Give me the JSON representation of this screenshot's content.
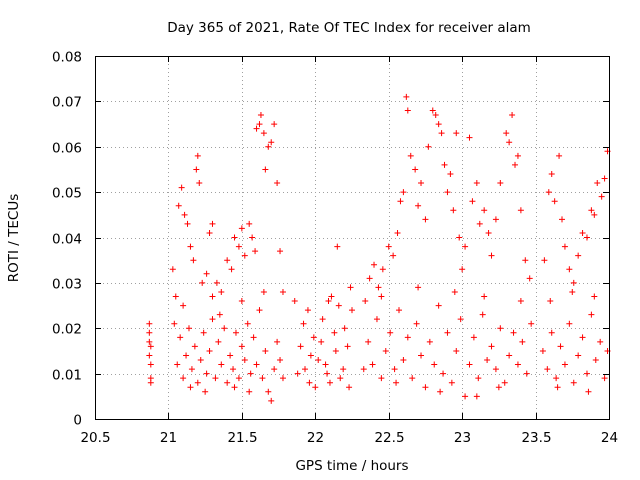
{
  "chart_data": {
    "type": "scatter",
    "title": "Day 365 of 2021, Rate Of TEC Index for receiver alam",
    "xlabel": "GPS time / hours",
    "ylabel": "ROTI / TECUs",
    "xlim": [
      20.5,
      24
    ],
    "ylim": [
      0,
      0.08
    ],
    "grid": true,
    "marker": "+",
    "color": "#ff0000",
    "x_ticks": [
      20.5,
      21,
      21.5,
      22,
      22.5,
      23,
      23.5,
      24
    ],
    "x_tick_labels": [
      "20.5",
      "21",
      "21.5",
      "22",
      "22.5",
      "23",
      "23.5",
      "24"
    ],
    "y_ticks": [
      0,
      0.01,
      0.02,
      0.03,
      0.04,
      0.05,
      0.06,
      0.07,
      0.08
    ],
    "y_tick_labels": [
      "0",
      "0.01",
      "0.02",
      "0.03",
      "0.04",
      "0.05",
      "0.06",
      "0.07",
      "0.08"
    ],
    "series": [
      {
        "name": "ROTI",
        "points": [
          [
            20.87,
            0.021
          ],
          [
            20.87,
            0.019
          ],
          [
            20.87,
            0.017
          ],
          [
            20.87,
            0.014
          ],
          [
            20.88,
            0.012
          ],
          [
            20.88,
            0.009
          ],
          [
            20.88,
            0.008
          ],
          [
            20.88,
            0.016
          ],
          [
            21.03,
            0.033
          ],
          [
            21.05,
            0.027
          ],
          [
            21.07,
            0.047
          ],
          [
            21.09,
            0.051
          ],
          [
            21.11,
            0.045
          ],
          [
            21.13,
            0.043
          ],
          [
            21.15,
            0.038
          ],
          [
            21.17,
            0.035
          ],
          [
            21.19,
            0.055
          ],
          [
            21.2,
            0.058
          ],
          [
            21.21,
            0.052
          ],
          [
            21.23,
            0.03
          ],
          [
            21.26,
            0.032
          ],
          [
            21.28,
            0.041
          ],
          [
            21.3,
            0.043
          ],
          [
            21.33,
            0.03
          ],
          [
            21.36,
            0.028
          ],
          [
            21.4,
            0.035
          ],
          [
            21.43,
            0.033
          ],
          [
            21.45,
            0.04
          ],
          [
            21.48,
            0.038
          ],
          [
            21.5,
            0.042
          ],
          [
            21.52,
            0.036
          ],
          [
            21.55,
            0.043
          ],
          [
            21.57,
            0.04
          ],
          [
            21.59,
            0.037
          ],
          [
            21.6,
            0.064
          ],
          [
            21.62,
            0.065
          ],
          [
            21.63,
            0.067
          ],
          [
            21.65,
            0.063
          ],
          [
            21.66,
            0.055
          ],
          [
            21.68,
            0.06
          ],
          [
            21.7,
            0.061
          ],
          [
            21.72,
            0.065
          ],
          [
            21.74,
            0.052
          ],
          [
            21.76,
            0.037
          ],
          [
            21.78,
            0.028
          ],
          [
            21.04,
            0.021
          ],
          [
            21.06,
            0.012
          ],
          [
            21.08,
            0.018
          ],
          [
            21.1,
            0.009
          ],
          [
            21.12,
            0.014
          ],
          [
            21.14,
            0.02
          ],
          [
            21.16,
            0.011
          ],
          [
            21.18,
            0.016
          ],
          [
            21.2,
            0.008
          ],
          [
            21.22,
            0.013
          ],
          [
            21.24,
            0.019
          ],
          [
            21.26,
            0.01
          ],
          [
            21.28,
            0.015
          ],
          [
            21.3,
            0.022
          ],
          [
            21.32,
            0.009
          ],
          [
            21.34,
            0.017
          ],
          [
            21.36,
            0.012
          ],
          [
            21.38,
            0.02
          ],
          [
            21.4,
            0.008
          ],
          [
            21.42,
            0.014
          ],
          [
            21.44,
            0.011
          ],
          [
            21.46,
            0.019
          ],
          [
            21.48,
            0.009
          ],
          [
            21.5,
            0.016
          ],
          [
            21.52,
            0.013
          ],
          [
            21.54,
            0.021
          ],
          [
            21.56,
            0.01
          ],
          [
            21.58,
            0.018
          ],
          [
            21.6,
            0.012
          ],
          [
            21.62,
            0.024
          ],
          [
            21.64,
            0.009
          ],
          [
            21.66,
            0.015
          ],
          [
            21.68,
            0.006
          ],
          [
            21.7,
            0.004
          ],
          [
            21.72,
            0.011
          ],
          [
            21.74,
            0.017
          ],
          [
            21.76,
            0.013
          ],
          [
            21.78,
            0.009
          ],
          [
            21.1,
            0.025
          ],
          [
            21.3,
            0.027
          ],
          [
            21.5,
            0.026
          ],
          [
            21.65,
            0.028
          ],
          [
            21.25,
            0.006
          ],
          [
            21.45,
            0.007
          ],
          [
            21.55,
            0.006
          ],
          [
            21.35,
            0.023
          ],
          [
            21.15,
            0.007
          ],
          [
            21.86,
            0.026
          ],
          [
            21.9,
            0.016
          ],
          [
            21.93,
            0.011
          ],
          [
            21.96,
            0.008
          ],
          [
            21.99,
            0.018
          ],
          [
            22.02,
            0.013
          ],
          [
            22.05,
            0.022
          ],
          [
            22.08,
            0.01
          ],
          [
            22.11,
            0.027
          ],
          [
            22.14,
            0.015
          ],
          [
            22.17,
            0.009
          ],
          [
            22.2,
            0.02
          ],
          [
            22.23,
            0.007
          ],
          [
            22.25,
            0.024
          ],
          [
            21.88,
            0.01
          ],
          [
            21.92,
            0.021
          ],
          [
            21.97,
            0.014
          ],
          [
            22.0,
            0.007
          ],
          [
            22.04,
            0.017
          ],
          [
            22.07,
            0.012
          ],
          [
            22.1,
            0.008
          ],
          [
            22.13,
            0.019
          ],
          [
            22.16,
            0.025
          ],
          [
            22.19,
            0.011
          ],
          [
            22.22,
            0.016
          ],
          [
            22.24,
            0.029
          ],
          [
            22.15,
            0.038
          ],
          [
            21.95,
            0.024
          ],
          [
            22.09,
            0.026
          ],
          [
            22.34,
            0.026
          ],
          [
            22.37,
            0.031
          ],
          [
            22.4,
            0.034
          ],
          [
            22.43,
            0.029
          ],
          [
            22.46,
            0.033
          ],
          [
            22.5,
            0.038
          ],
          [
            22.53,
            0.036
          ],
          [
            22.56,
            0.041
          ],
          [
            22.58,
            0.048
          ],
          [
            22.6,
            0.05
          ],
          [
            22.62,
            0.071
          ],
          [
            22.63,
            0.068
          ],
          [
            22.65,
            0.058
          ],
          [
            22.68,
            0.055
          ],
          [
            22.7,
            0.047
          ],
          [
            22.72,
            0.052
          ],
          [
            22.75,
            0.044
          ],
          [
            22.77,
            0.06
          ],
          [
            22.8,
            0.068
          ],
          [
            22.82,
            0.067
          ],
          [
            22.84,
            0.065
          ],
          [
            22.86,
            0.063
          ],
          [
            22.88,
            0.056
          ],
          [
            22.9,
            0.05
          ],
          [
            22.92,
            0.054
          ],
          [
            22.94,
            0.046
          ],
          [
            22.96,
            0.063
          ],
          [
            22.98,
            0.04
          ],
          [
            23.0,
            0.033
          ],
          [
            23.02,
            0.038
          ],
          [
            23.05,
            0.062
          ],
          [
            23.07,
            0.048
          ],
          [
            23.1,
            0.052
          ],
          [
            23.12,
            0.043
          ],
          [
            23.15,
            0.046
          ],
          [
            23.18,
            0.041
          ],
          [
            23.2,
            0.036
          ],
          [
            23.23,
            0.044
          ],
          [
            23.26,
            0.052
          ],
          [
            23.3,
            0.063
          ],
          [
            23.32,
            0.061
          ],
          [
            23.34,
            0.067
          ],
          [
            23.36,
            0.056
          ],
          [
            23.38,
            0.058
          ],
          [
            23.4,
            0.046
          ],
          [
            23.43,
            0.035
          ],
          [
            23.46,
            0.031
          ],
          [
            22.33,
            0.011
          ],
          [
            22.36,
            0.017
          ],
          [
            22.39,
            0.012
          ],
          [
            22.42,
            0.022
          ],
          [
            22.45,
            0.009
          ],
          [
            22.48,
            0.015
          ],
          [
            22.51,
            0.019
          ],
          [
            22.54,
            0.011
          ],
          [
            22.57,
            0.024
          ],
          [
            22.6,
            0.013
          ],
          [
            22.63,
            0.018
          ],
          [
            22.66,
            0.009
          ],
          [
            22.69,
            0.021
          ],
          [
            22.72,
            0.014
          ],
          [
            22.75,
            0.007
          ],
          [
            22.78,
            0.017
          ],
          [
            22.81,
            0.012
          ],
          [
            22.84,
            0.025
          ],
          [
            22.87,
            0.01
          ],
          [
            22.9,
            0.019
          ],
          [
            22.93,
            0.008
          ],
          [
            22.96,
            0.015
          ],
          [
            22.99,
            0.022
          ],
          [
            23.02,
            0.005
          ],
          [
            23.05,
            0.012
          ],
          [
            23.08,
            0.018
          ],
          [
            23.11,
            0.009
          ],
          [
            23.14,
            0.023
          ],
          [
            23.17,
            0.013
          ],
          [
            23.2,
            0.016
          ],
          [
            23.23,
            0.011
          ],
          [
            23.26,
            0.02
          ],
          [
            23.29,
            0.008
          ],
          [
            23.32,
            0.014
          ],
          [
            23.35,
            0.019
          ],
          [
            23.38,
            0.012
          ],
          [
            23.41,
            0.017
          ],
          [
            23.44,
            0.01
          ],
          [
            23.47,
            0.021
          ],
          [
            22.45,
            0.027
          ],
          [
            22.7,
            0.029
          ],
          [
            22.95,
            0.028
          ],
          [
            23.15,
            0.027
          ],
          [
            23.4,
            0.026
          ],
          [
            22.55,
            0.008
          ],
          [
            22.85,
            0.006
          ],
          [
            23.25,
            0.007
          ],
          [
            23.1,
            0.005
          ],
          [
            23.56,
            0.035
          ],
          [
            23.59,
            0.05
          ],
          [
            23.61,
            0.054
          ],
          [
            23.63,
            0.048
          ],
          [
            23.66,
            0.058
          ],
          [
            23.68,
            0.044
          ],
          [
            23.7,
            0.038
          ],
          [
            23.73,
            0.033
          ],
          [
            23.76,
            0.03
          ],
          [
            23.79,
            0.036
          ],
          [
            23.82,
            0.041
          ],
          [
            23.85,
            0.04
          ],
          [
            23.88,
            0.046
          ],
          [
            23.9,
            0.045
          ],
          [
            23.92,
            0.052
          ],
          [
            23.95,
            0.049
          ],
          [
            23.97,
            0.053
          ],
          [
            23.99,
            0.059
          ],
          [
            23.55,
            0.015
          ],
          [
            23.58,
            0.011
          ],
          [
            23.61,
            0.019
          ],
          [
            23.64,
            0.009
          ],
          [
            23.67,
            0.016
          ],
          [
            23.7,
            0.012
          ],
          [
            23.73,
            0.021
          ],
          [
            23.76,
            0.008
          ],
          [
            23.79,
            0.014
          ],
          [
            23.82,
            0.018
          ],
          [
            23.85,
            0.01
          ],
          [
            23.88,
            0.023
          ],
          [
            23.91,
            0.013
          ],
          [
            23.94,
            0.017
          ],
          [
            23.97,
            0.009
          ],
          [
            23.99,
            0.015
          ],
          [
            23.6,
            0.026
          ],
          [
            23.75,
            0.028
          ],
          [
            23.9,
            0.027
          ],
          [
            23.65,
            0.007
          ],
          [
            23.86,
            0.006
          ]
        ]
      }
    ]
  }
}
